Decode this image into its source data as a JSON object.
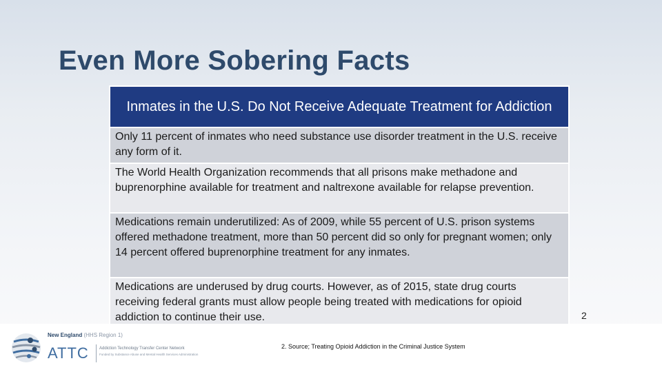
{
  "slide": {
    "title": "Even More Sobering Facts",
    "page_number": "2"
  },
  "table": {
    "header": "Inmates in the U.S. Do Not Receive Adequate Treatment for Addiction",
    "rows": [
      "Only 11 percent of inmates who need substance use disorder treatment in the U.S. receive any form of it.",
      "The World Health Organization recommends that all prisons make methadone and buprenorphine available for treatment and naltrexone available for relapse prevention.",
      "Medications remain underutilized:  As of 2009, while 55 percent of U.S. prison systems offered methadone treatment, more than 50 percent did so only for pregnant women; only 14 percent offered buprenorphine treatment for any inmates.",
      "Medications are underused by drug courts. However, as of 2015, state drug courts receiving federal grants must allow people being treated with medications for opioid addiction to continue their use."
    ]
  },
  "footer": {
    "source": "2. Source; Treating Opioid Addiction in the Criminal Justice System",
    "logo": {
      "region": "New England",
      "region_sub": "(HHS Region 1)",
      "name": "ATTC",
      "full_name": "Addiction Technology Transfer Center Network",
      "funded_by": "Funded by Substance Abuse and Mental Health Services Administration"
    }
  },
  "colors": {
    "title": "#2e4a6b",
    "header_bg": "#1f3b82",
    "row_dark": "#cfd2d9",
    "row_light": "#e8e9ed",
    "logo_blue": "#3f6da0"
  }
}
